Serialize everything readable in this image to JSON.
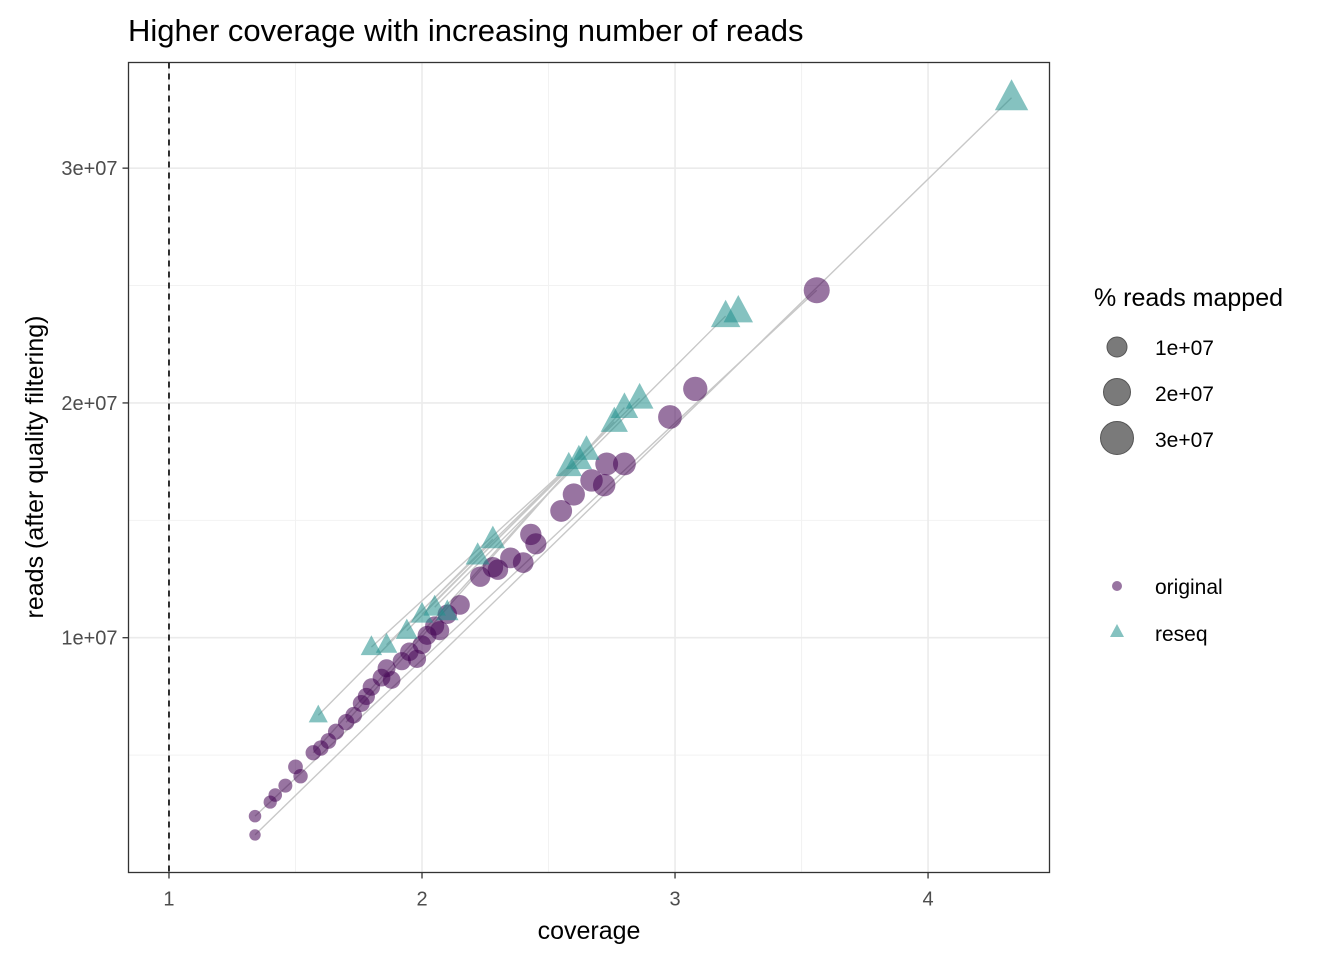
{
  "chart_data": {
    "type": "scatter",
    "title": "Higher coverage with increasing number of reads",
    "xlabel": "coverage",
    "ylabel": "reads (after quality filtering)",
    "xlim": [
      0.84,
      4.48
    ],
    "ylim": [
      0,
      34500000
    ],
    "x_ticks": [
      1,
      2,
      3,
      4
    ],
    "x_tick_labels": [
      "1",
      "2",
      "3",
      "4"
    ],
    "y_ticks": [
      10000000,
      20000000,
      30000000
    ],
    "y_tick_labels": [
      "1e+07",
      "2e+07",
      "3e+07"
    ],
    "reference_line": {
      "type": "vertical",
      "x": 1,
      "style": "dashed"
    },
    "grid": true,
    "legend_position": "right",
    "size_legend": {
      "title": "% reads mapped",
      "entries": [
        {
          "label": "1e+07",
          "value": 10000000
        },
        {
          "label": "2e+07",
          "value": 20000000
        },
        {
          "label": "3e+07",
          "value": 30000000
        }
      ]
    },
    "shape_legend": {
      "entries": [
        {
          "label": "original",
          "shape": "circle",
          "color": "#440154"
        },
        {
          "label": "reseq",
          "shape": "triangle",
          "color": "#21908C"
        }
      ]
    },
    "series": [
      {
        "name": "original",
        "shape": "circle",
        "color": "#440154",
        "points": [
          [
            1.34,
            2400000
          ],
          [
            1.34,
            1600000
          ],
          [
            1.4,
            3000000
          ],
          [
            1.42,
            3300000
          ],
          [
            1.46,
            3700000
          ],
          [
            1.5,
            4500000
          ],
          [
            1.52,
            4100000
          ],
          [
            1.57,
            5100000
          ],
          [
            1.6,
            5300000
          ],
          [
            1.63,
            5600000
          ],
          [
            1.66,
            6000000
          ],
          [
            1.7,
            6400000
          ],
          [
            1.73,
            6700000
          ],
          [
            1.76,
            7200000
          ],
          [
            1.78,
            7500000
          ],
          [
            1.8,
            7900000
          ],
          [
            1.84,
            8300000
          ],
          [
            1.86,
            8700000
          ],
          [
            1.88,
            8200000
          ],
          [
            1.92,
            9000000
          ],
          [
            1.95,
            9400000
          ],
          [
            1.98,
            9100000
          ],
          [
            2.0,
            9700000
          ],
          [
            2.02,
            10100000
          ],
          [
            2.05,
            10500000
          ],
          [
            2.07,
            10300000
          ],
          [
            2.1,
            11000000
          ],
          [
            2.15,
            11400000
          ],
          [
            2.23,
            12600000
          ],
          [
            2.28,
            13000000
          ],
          [
            2.3,
            12900000
          ],
          [
            2.35,
            13400000
          ],
          [
            2.4,
            13200000
          ],
          [
            2.43,
            14400000
          ],
          [
            2.45,
            14000000
          ],
          [
            2.55,
            15400000
          ],
          [
            2.6,
            16100000
          ],
          [
            2.67,
            16700000
          ],
          [
            2.72,
            16500000
          ],
          [
            2.73,
            17400000
          ],
          [
            2.8,
            17400000
          ],
          [
            2.98,
            19400000
          ],
          [
            3.08,
            20600000
          ],
          [
            3.56,
            24800000
          ]
        ]
      },
      {
        "name": "reseq",
        "shape": "triangle",
        "color": "#21908C",
        "points": [
          [
            1.59,
            6700000
          ],
          [
            1.8,
            9600000
          ],
          [
            1.86,
            9700000
          ],
          [
            1.94,
            10300000
          ],
          [
            2.0,
            11000000
          ],
          [
            2.05,
            11300000
          ],
          [
            2.1,
            11100000
          ],
          [
            2.22,
            13500000
          ],
          [
            2.28,
            14200000
          ],
          [
            2.58,
            17300000
          ],
          [
            2.62,
            17600000
          ],
          [
            2.65,
            18000000
          ],
          [
            2.76,
            19200000
          ],
          [
            2.8,
            19800000
          ],
          [
            2.86,
            20200000
          ],
          [
            3.2,
            23700000
          ],
          [
            3.25,
            23900000
          ],
          [
            4.33,
            33000000
          ]
        ]
      }
    ],
    "connector_pairs": [
      [
        [
          1.34,
          1600000
        ],
        [
          4.33,
          33000000
        ]
      ],
      [
        [
          1.34,
          2400000
        ],
        [
          3.56,
          24800000
        ]
      ],
      [
        [
          1.59,
          6700000
        ],
        [
          2.28,
          14200000
        ]
      ],
      [
        [
          1.8,
          9600000
        ],
        [
          2.58,
          17300000
        ]
      ],
      [
        [
          1.86,
          9700000
        ],
        [
          2.65,
          18000000
        ]
      ],
      [
        [
          1.94,
          10300000
        ],
        [
          2.76,
          19200000
        ]
      ],
      [
        [
          2.0,
          11000000
        ],
        [
          2.86,
          20200000
        ]
      ],
      [
        [
          2.05,
          11300000
        ],
        [
          3.2,
          23700000
        ]
      ],
      [
        [
          1.57,
          5100000
        ],
        [
          2.62,
          17600000
        ]
      ],
      [
        [
          1.7,
          6400000
        ],
        [
          2.8,
          19800000
        ]
      ]
    ]
  }
}
